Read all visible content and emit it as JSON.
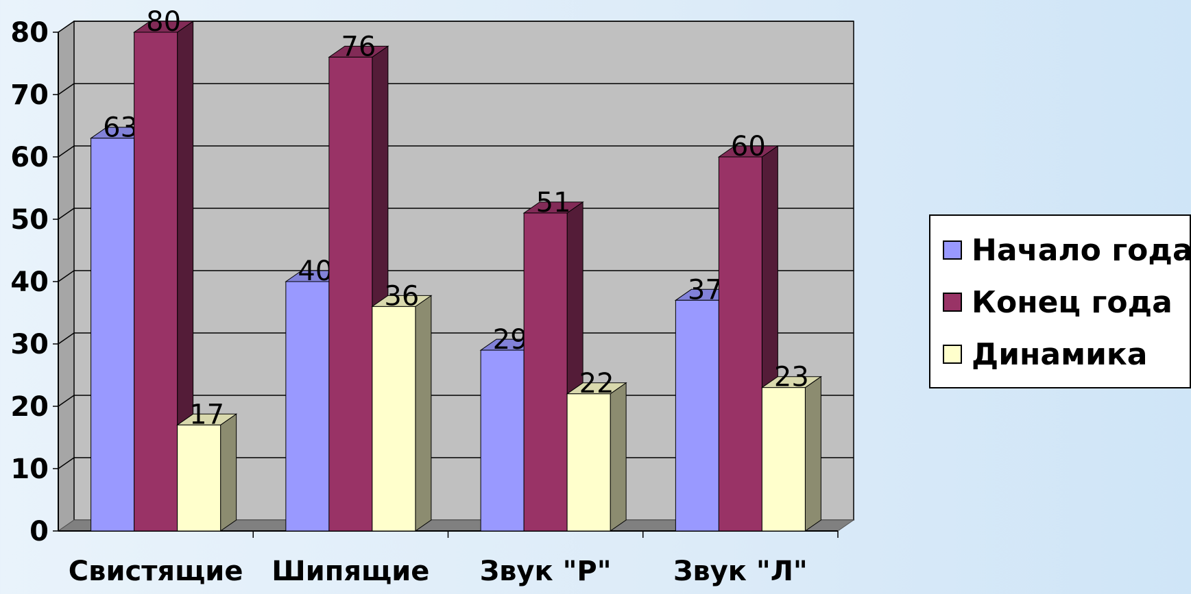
{
  "chart_data": {
    "type": "bar",
    "title": "",
    "xlabel": "",
    "ylabel": "",
    "categories": [
      "Свистящие",
      "Шипящие",
      "Звук \"Р\"",
      "Звук \"Л\""
    ],
    "series": [
      {
        "name": "Начало года",
        "values": [
          63,
          40,
          29,
          37
        ],
        "color": "#9999ff"
      },
      {
        "name": "Конец года",
        "values": [
          80,
          76,
          51,
          60
        ],
        "color": "#993366"
      },
      {
        "name": "Динамика",
        "values": [
          17,
          36,
          22,
          23
        ],
        "color": "#ffffcc"
      }
    ],
    "ylim": [
      0,
      80
    ],
    "yticks": [
      0,
      10,
      20,
      30,
      40,
      50,
      60,
      70,
      80
    ],
    "grid": true,
    "data_labels": true,
    "three_d": true,
    "legend_position": "right",
    "plot_background": "#c0c0c0"
  }
}
